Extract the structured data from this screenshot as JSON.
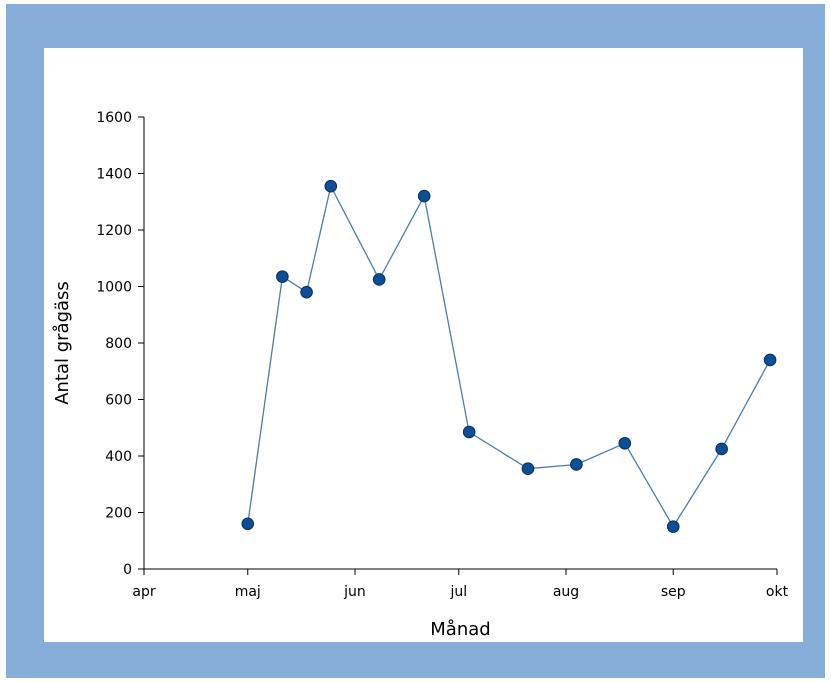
{
  "colors": {
    "frame": "#87aed9",
    "panel": "#ffffff",
    "line": "#4a7fa8",
    "marker_fill": "#0d4f96",
    "marker_stroke": "#08305e",
    "axis": "#000000"
  },
  "chart_data": {
    "type": "line",
    "title": "",
    "xlabel": "Månad",
    "ylabel": "Antal grågäss",
    "x_tick_labels": [
      "apr",
      "maj",
      "jun",
      "jul",
      "aug",
      "sep",
      "okt"
    ],
    "y_ticks": [
      0,
      200,
      400,
      600,
      800,
      1000,
      1200,
      1400,
      1600
    ],
    "ylim": [
      0,
      1600
    ],
    "xlim": [
      "2000-04-01",
      "2000-10-01"
    ],
    "grid": false,
    "legend": "none",
    "series": [
      {
        "points": [
          {
            "x": "2000-05-01",
            "y": 160
          },
          {
            "x": "2000-05-11",
            "y": 1035
          },
          {
            "x": "2000-05-18",
            "y": 980
          },
          {
            "x": "2000-05-25",
            "y": 1355
          },
          {
            "x": "2000-06-08",
            "y": 1025
          },
          {
            "x": "2000-06-21",
            "y": 1320
          },
          {
            "x": "2000-07-04",
            "y": 485
          },
          {
            "x": "2000-07-21",
            "y": 355
          },
          {
            "x": "2000-08-04",
            "y": 370
          },
          {
            "x": "2000-08-18",
            "y": 445
          },
          {
            "x": "2000-09-01",
            "y": 150
          },
          {
            "x": "2000-09-15",
            "y": 425
          },
          {
            "x": "2000-09-29",
            "y": 740
          }
        ]
      }
    ]
  }
}
